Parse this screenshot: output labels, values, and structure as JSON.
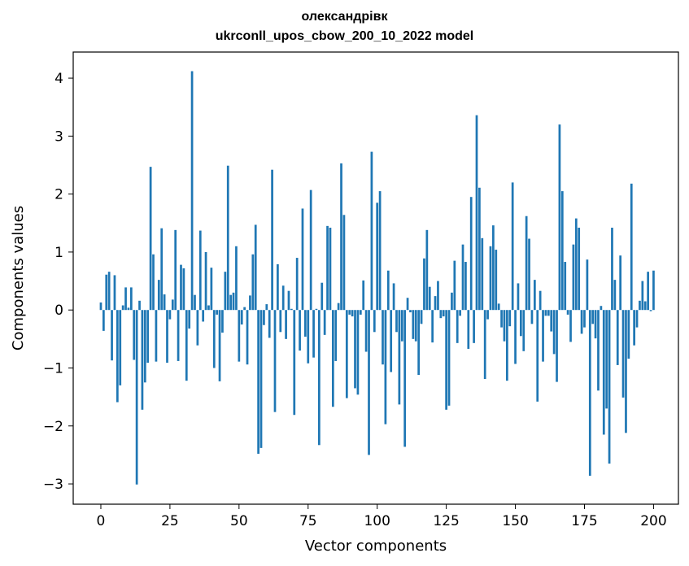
{
  "chart_data": {
    "type": "bar",
    "title": "олександрівк",
    "subtitle": "ukrconll_upos_cbow_200_10_2022 model",
    "xlabel": "Vector components",
    "ylabel": "Components values",
    "xlim": [
      -10,
      209
    ],
    "ylim": [
      -3.35,
      4.45
    ],
    "xticks": [
      0,
      25,
      50,
      75,
      100,
      125,
      150,
      175,
      200
    ],
    "xtick_labels": [
      "0",
      "25",
      "50",
      "75",
      "100",
      "125",
      "150",
      "175",
      "200"
    ],
    "yticks": [
      -3,
      -2,
      -1,
      0,
      1,
      2,
      3,
      4
    ],
    "ytick_labels": [
      "−3",
      "−2",
      "−1",
      "0",
      "1",
      "2",
      "3",
      "4"
    ],
    "grid": false,
    "bar_color": "#1f77b4",
    "values": [
      0.13,
      -0.36,
      0.61,
      0.66,
      -0.87,
      0.6,
      -1.59,
      -1.3,
      0.08,
      0.39,
      0.04,
      0.39,
      -0.86,
      -3.01,
      0.16,
      -1.72,
      -1.25,
      -0.91,
      2.47,
      0.96,
      -0.89,
      0.52,
      1.41,
      0.27,
      -0.91,
      -0.16,
      0.18,
      1.38,
      -0.88,
      0.78,
      0.72,
      -1.22,
      -0.32,
      4.12,
      0.26,
      -0.61,
      1.37,
      -0.2,
      1.0,
      0.08,
      0.73,
      -1.0,
      -0.08,
      -1.23,
      -0.39,
      0.66,
      2.49,
      0.26,
      0.3,
      1.1,
      -0.89,
      -0.25,
      0.05,
      -0.94,
      0.25,
      0.96,
      1.47,
      -2.48,
      -2.38,
      -0.26,
      0.1,
      -0.48,
      2.42,
      -1.76,
      0.79,
      -0.38,
      0.42,
      -0.5,
      0.33,
      0.02,
      -1.81,
      0.9,
      -0.7,
      1.75,
      -0.46,
      -0.92,
      2.07,
      -0.82,
      0.02,
      -2.33,
      0.47,
      -0.43,
      1.45,
      1.42,
      -1.67,
      -0.88,
      0.12,
      2.53,
      1.64,
      -1.52,
      -0.08,
      -0.11,
      -1.35,
      -1.46,
      -0.08,
      0.51,
      -0.72,
      -2.5,
      2.73,
      -0.38,
      1.85,
      2.05,
      -0.94,
      -1.97,
      0.68,
      -1.07,
      0.46,
      -0.38,
      -1.63,
      -0.54,
      -2.36,
      0.21,
      -0.04,
      -0.5,
      -0.54,
      -1.12,
      -0.24,
      0.89,
      1.38,
      0.4,
      -0.56,
      0.24,
      0.5,
      -0.14,
      -0.11,
      -1.72,
      -1.65,
      0.3,
      0.85,
      -0.57,
      -0.1,
      1.13,
      0.83,
      -0.67,
      1.95,
      -0.57,
      3.36,
      2.11,
      1.24,
      -1.19,
      -0.16,
      1.1,
      1.46,
      1.04,
      0.11,
      -0.3,
      -0.54,
      -1.22,
      -0.28,
      2.2,
      -0.93,
      0.46,
      -0.45,
      -0.71,
      1.62,
      1.23,
      -0.24,
      0.52,
      -1.58,
      0.33,
      -0.89,
      -0.1,
      -0.1,
      -0.37,
      -0.76,
      -1.24,
      3.2,
      2.05,
      0.83,
      -0.08,
      -0.55,
      1.13,
      1.58,
      1.42,
      -0.41,
      -0.3,
      0.87,
      -2.86,
      -0.24,
      -0.49,
      -1.39,
      0.07,
      -2.15,
      -1.7,
      -2.65,
      1.42,
      0.52,
      -0.95,
      0.94,
      -1.51,
      -2.12,
      -0.84,
      2.18,
      -0.61,
      -0.3,
      0.16,
      0.5,
      0.15,
      0.66,
      -0.02,
      0.68
    ]
  }
}
